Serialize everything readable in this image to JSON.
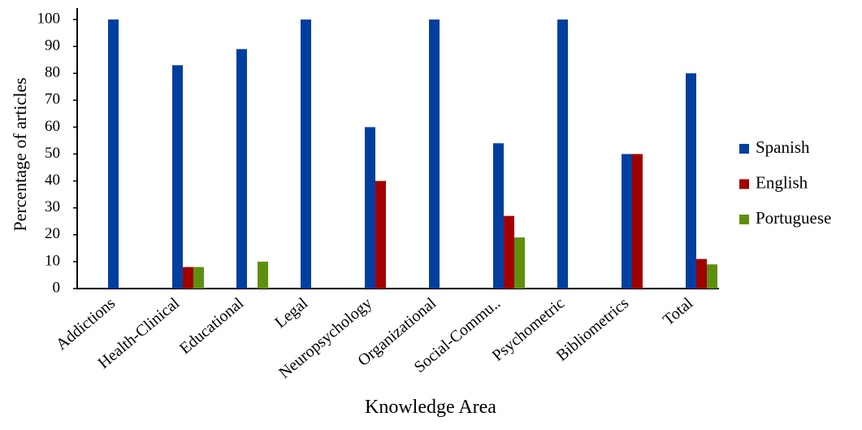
{
  "chart_data": {
    "type": "bar",
    "x_label": "Knowledge Area",
    "y_label": "Percentage of articles",
    "categories": [
      "Addictions",
      "Health-Clinical",
      "Educational",
      "Legal",
      "Neuropsychology",
      "Organizational",
      "Social-Commu..",
      "Psychometric",
      "Bibliometrics",
      "Total"
    ],
    "series": [
      {
        "name": "Spanish",
        "color": "#003f9f",
        "values": [
          100,
          83,
          89,
          100,
          60,
          100,
          54,
          100,
          50,
          80
        ]
      },
      {
        "name": "English",
        "color": "#a00000",
        "values": [
          0,
          8,
          0,
          0,
          40,
          0,
          27,
          0,
          50,
          11
        ]
      },
      {
        "name": "Portuguese",
        "color": "#5f8f0f",
        "values": [
          0,
          8,
          10,
          0,
          0,
          0,
          19,
          0,
          0,
          9
        ]
      }
    ],
    "ylim": [
      0,
      100
    ],
    "yticks": [
      0,
      10,
      20,
      30,
      40,
      50,
      60,
      70,
      80,
      90,
      100
    ],
    "legend": "right"
  }
}
